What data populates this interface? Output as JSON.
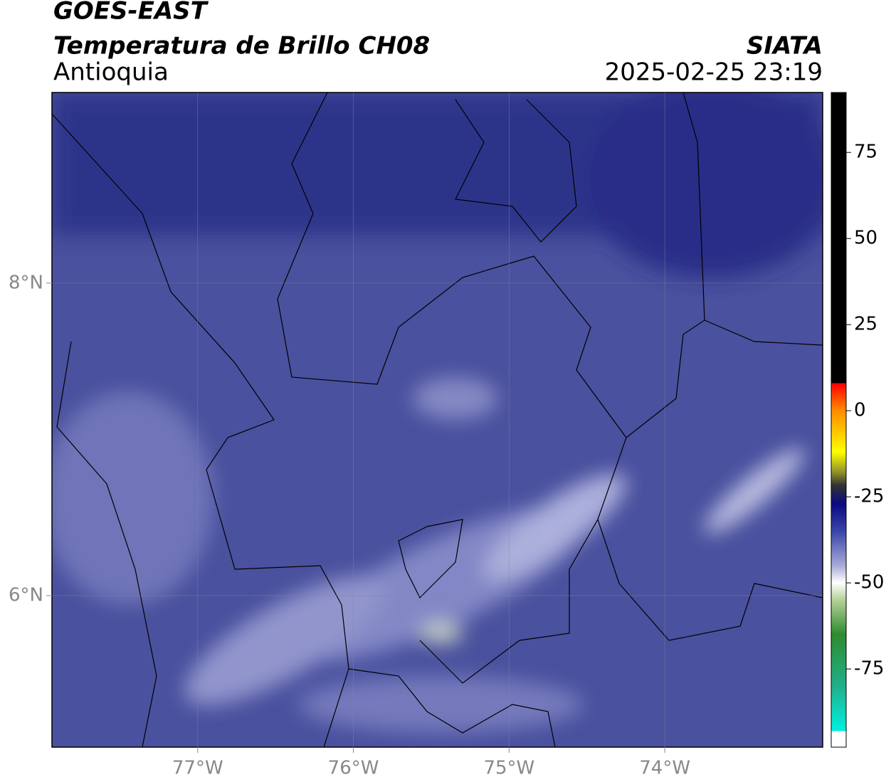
{
  "header": {
    "line1": "GOES-EAST",
    "line2": "Temperatura de Brillo CH08",
    "region": "Antioquia",
    "source": "SIATA",
    "datetime": "2025-02-25 23:19"
  },
  "map": {
    "xlim": [
      -77.936,
      -72.986
    ],
    "ylim": [
      5.03,
      9.22
    ],
    "xticks": [
      {
        "value": -77,
        "label": "77°W"
      },
      {
        "value": -76,
        "label": "76°W"
      },
      {
        "value": -75,
        "label": "75°W"
      },
      {
        "value": -74,
        "label": "74°W"
      }
    ],
    "yticks": [
      {
        "value": 6,
        "label": "6°N"
      },
      {
        "value": 8,
        "label": "8°N"
      }
    ],
    "grid": true
  },
  "colorbar": {
    "clim": [
      -97.7,
      92.4
    ],
    "ticks": [
      75,
      50,
      25,
      0,
      -25,
      -50,
      -75
    ]
  }
}
